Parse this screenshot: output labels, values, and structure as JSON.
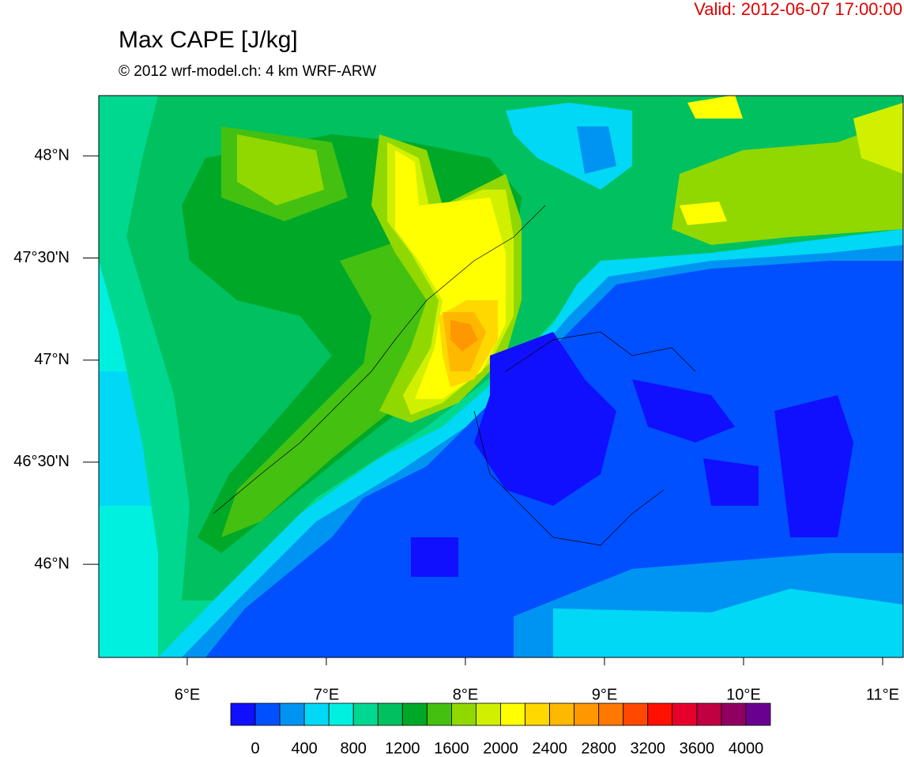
{
  "header": {
    "valid": "Valid: 2012-06-07 17:00:00",
    "title": "Max CAPE [J/kg]",
    "subtitle": "© 2012 wrf-model.ch: 4 km WRF-ARW"
  },
  "map": {
    "xlim": [
      5.364,
      11.148
    ],
    "ylim": [
      45.544,
      48.295
    ],
    "xticks": [
      {
        "value": 6,
        "label": "6°E"
      },
      {
        "value": 7,
        "label": "7°E"
      },
      {
        "value": 8,
        "label": "8°E"
      },
      {
        "value": 9,
        "label": "9°E"
      },
      {
        "value": 10,
        "label": "10°E"
      },
      {
        "value": 11,
        "label": "11°E"
      }
    ],
    "yticks": [
      {
        "value": 46,
        "label": "46°N"
      },
      {
        "value": 46.5,
        "label": "46°30'N"
      },
      {
        "value": 47,
        "label": "47°N"
      },
      {
        "value": 47.5,
        "label": "47°30'N"
      },
      {
        "value": 48,
        "label": "48°N"
      }
    ]
  },
  "colorbar": {
    "lim": [
      -200,
      4200
    ],
    "colors": [
      "#1010ff",
      "#0050ff",
      "#0094f2",
      "#00d8f6",
      "#00f0e0",
      "#00d890",
      "#00c060",
      "#00a828",
      "#44c010",
      "#90d800",
      "#d0f000",
      "#ffff00",
      "#ffd800",
      "#ffb800",
      "#ff9800",
      "#ff7800",
      "#ff4800",
      "#ff1000",
      "#e8002c",
      "#c00040",
      "#900060",
      "#6a0090"
    ],
    "ticks": [
      0,
      400,
      800,
      1200,
      1600,
      2000,
      2400,
      2800,
      3200,
      3600,
      4000
    ]
  }
}
